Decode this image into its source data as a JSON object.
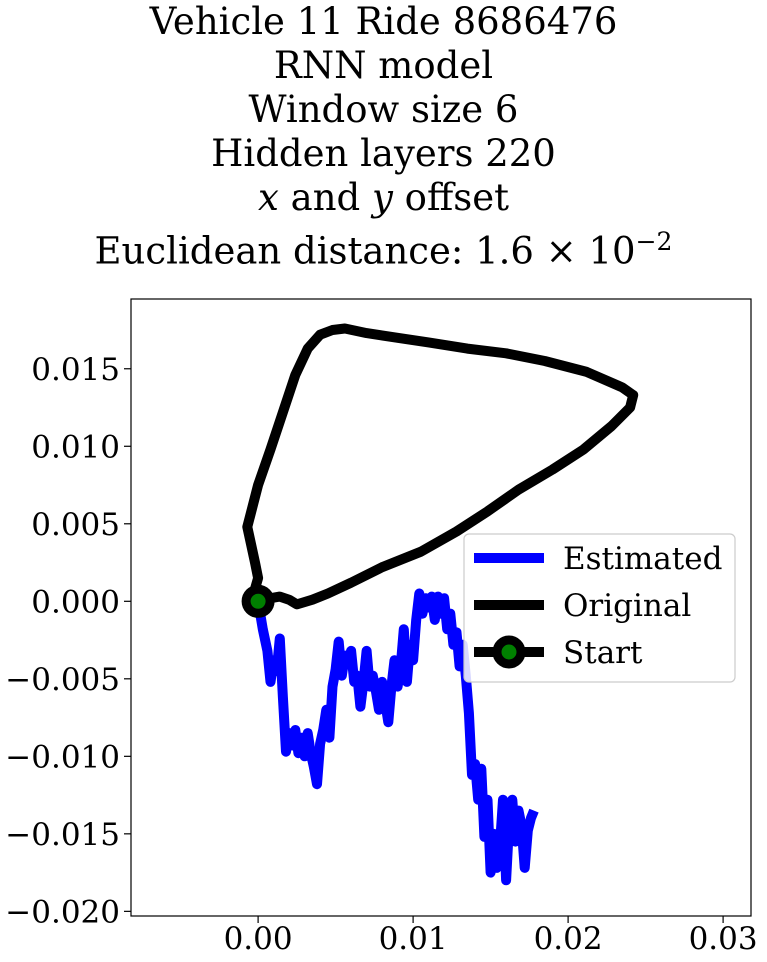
{
  "title": {
    "line1": "Vehicle 11 Ride 8686476",
    "line2": "RNN model",
    "line3": "Window size 6",
    "line4": "Hidden layers 220",
    "line5_var1": "x",
    "line5_mid": " and ",
    "line5_var2": "y",
    "line5_end": " offset",
    "line6_prefix": "Euclidean distance: 1.6 × 10",
    "line6_exp": "−2"
  },
  "chart_data": {
    "type": "line",
    "xlim": [
      -0.0082,
      0.0318
    ],
    "ylim": [
      -0.0203,
      0.0195
    ],
    "xticks": [
      {
        "value": 0.0,
        "label": "0.00"
      },
      {
        "value": 0.01,
        "label": "0.01"
      },
      {
        "value": 0.02,
        "label": "0.02"
      },
      {
        "value": 0.03,
        "label": "0.03"
      }
    ],
    "yticks": [
      {
        "value": 0.015,
        "label": "0.015"
      },
      {
        "value": 0.01,
        "label": "0.010"
      },
      {
        "value": 0.005,
        "label": "0.005"
      },
      {
        "value": 0.0,
        "label": "0.000"
      },
      {
        "value": -0.005,
        "label": "−0.005"
      },
      {
        "value": -0.01,
        "label": "−0.010"
      },
      {
        "value": -0.015,
        "label": "−0.015"
      },
      {
        "value": -0.02,
        "label": "−0.020"
      }
    ],
    "legend_position": "center-right",
    "series": [
      {
        "name": "Estimated",
        "color": "#0000ff",
        "points": [
          [
            0.0,
            0.0
          ],
          [
            0.0003,
            -0.0018
          ],
          [
            0.0006,
            -0.0032
          ],
          [
            0.0008,
            -0.0052
          ],
          [
            0.001,
            -0.0038
          ],
          [
            0.0012,
            -0.0045
          ],
          [
            0.0014,
            -0.0024
          ],
          [
            0.0016,
            -0.0062
          ],
          [
            0.0018,
            -0.0097
          ],
          [
            0.002,
            -0.0085
          ],
          [
            0.0022,
            -0.0093
          ],
          [
            0.0024,
            -0.0083
          ],
          [
            0.0026,
            -0.0098
          ],
          [
            0.0028,
            -0.0088
          ],
          [
            0.003,
            -0.01
          ],
          [
            0.0032,
            -0.0085
          ],
          [
            0.0034,
            -0.0098
          ],
          [
            0.0036,
            -0.0107
          ],
          [
            0.0038,
            -0.0118
          ],
          [
            0.004,
            -0.0092
          ],
          [
            0.0042,
            -0.0083
          ],
          [
            0.0044,
            -0.007
          ],
          [
            0.0046,
            -0.0088
          ],
          [
            0.0048,
            -0.0055
          ],
          [
            0.005,
            -0.0044
          ],
          [
            0.0052,
            -0.0026
          ],
          [
            0.0054,
            -0.0048
          ],
          [
            0.0056,
            -0.0035
          ],
          [
            0.0058,
            -0.004
          ],
          [
            0.006,
            -0.0032
          ],
          [
            0.0062,
            -0.0052
          ],
          [
            0.0064,
            -0.0048
          ],
          [
            0.0066,
            -0.0068
          ],
          [
            0.0068,
            -0.0052
          ],
          [
            0.007,
            -0.0032
          ],
          [
            0.0072,
            -0.0055
          ],
          [
            0.0074,
            -0.0048
          ],
          [
            0.0076,
            -0.0058
          ],
          [
            0.0078,
            -0.007
          ],
          [
            0.008,
            -0.0052
          ],
          [
            0.0082,
            -0.0065
          ],
          [
            0.0084,
            -0.0078
          ],
          [
            0.0086,
            -0.0055
          ],
          [
            0.0088,
            -0.0038
          ],
          [
            0.009,
            -0.0055
          ],
          [
            0.0092,
            -0.0042
          ],
          [
            0.0094,
            -0.0018
          ],
          [
            0.0096,
            -0.0052
          ],
          [
            0.0098,
            -0.0028
          ],
          [
            0.01,
            -0.0038
          ],
          [
            0.0102,
            -0.0012
          ],
          [
            0.0104,
            0.0005
          ],
          [
            0.0106,
            -0.0008
          ],
          [
            0.0108,
            0.0002
          ],
          [
            0.011,
            -0.0004
          ],
          [
            0.0112,
            0.0003
          ],
          [
            0.0114,
            -0.0012
          ],
          [
            0.0116,
            0.0003
          ],
          [
            0.0118,
            -0.0008
          ],
          [
            0.012,
            0.0002
          ],
          [
            0.0122,
            -0.0018
          ],
          [
            0.0124,
            -0.0008
          ],
          [
            0.0126,
            -0.0028
          ],
          [
            0.0128,
            -0.002
          ],
          [
            0.013,
            -0.0042
          ],
          [
            0.0132,
            -0.0028
          ],
          [
            0.0134,
            -0.0048
          ],
          [
            0.0136,
            -0.0072
          ],
          [
            0.0138,
            -0.0112
          ],
          [
            0.014,
            -0.0105
          ],
          [
            0.0142,
            -0.0128
          ],
          [
            0.0144,
            -0.0108
          ],
          [
            0.0146,
            -0.0152
          ],
          [
            0.0148,
            -0.0128
          ],
          [
            0.015,
            -0.0175
          ],
          [
            0.0152,
            -0.015
          ],
          [
            0.0154,
            -0.0172
          ],
          [
            0.0156,
            -0.0158
          ],
          [
            0.0158,
            -0.0128
          ],
          [
            0.016,
            -0.018
          ],
          [
            0.0162,
            -0.0142
          ],
          [
            0.0164,
            -0.0128
          ],
          [
            0.0166,
            -0.0155
          ],
          [
            0.0168,
            -0.0135
          ],
          [
            0.017,
            -0.0145
          ],
          [
            0.0172,
            -0.0172
          ],
          [
            0.0174,
            -0.0148
          ],
          [
            0.0176,
            -0.014
          ],
          [
            0.0178,
            -0.0135
          ]
        ]
      },
      {
        "name": "Original",
        "color": "#000000",
        "points": [
          [
            0.0,
            0.0
          ],
          [
            -0.0002,
            0.0008
          ],
          [
            0.0,
            0.0015
          ],
          [
            -0.0002,
            0.0025
          ],
          [
            -0.0007,
            0.0048
          ],
          [
            0.0,
            0.0075
          ],
          [
            0.0008,
            0.0098
          ],
          [
            0.0016,
            0.0122
          ],
          [
            0.0024,
            0.0146
          ],
          [
            0.0032,
            0.0163
          ],
          [
            0.004,
            0.0172
          ],
          [
            0.0048,
            0.0175
          ],
          [
            0.0056,
            0.0176
          ],
          [
            0.007,
            0.0173
          ],
          [
            0.009,
            0.017
          ],
          [
            0.011,
            0.0167
          ],
          [
            0.0135,
            0.0163
          ],
          [
            0.016,
            0.016
          ],
          [
            0.0185,
            0.0155
          ],
          [
            0.0212,
            0.0148
          ],
          [
            0.0235,
            0.0138
          ],
          [
            0.0242,
            0.0133
          ],
          [
            0.024,
            0.0125
          ],
          [
            0.0228,
            0.0113
          ],
          [
            0.021,
            0.0098
          ],
          [
            0.019,
            0.0085
          ],
          [
            0.0168,
            0.0072
          ],
          [
            0.0148,
            0.0058
          ],
          [
            0.0128,
            0.0045
          ],
          [
            0.0105,
            0.0032
          ],
          [
            0.008,
            0.0022
          ],
          [
            0.006,
            0.0012
          ],
          [
            0.0045,
            0.0005
          ],
          [
            0.0035,
            0.0001
          ],
          [
            0.0025,
            -0.0002
          ],
          [
            0.002,
            0.0001
          ],
          [
            0.0014,
            0.0003
          ],
          [
            0.0008,
            0.0002
          ],
          [
            0.0003,
            0.0001
          ],
          [
            0.0,
            0.0
          ]
        ]
      },
      {
        "name": "Start",
        "color": "#000000",
        "marker_face": "#008000",
        "points": [
          [
            0.0,
            0.0
          ]
        ]
      }
    ]
  }
}
